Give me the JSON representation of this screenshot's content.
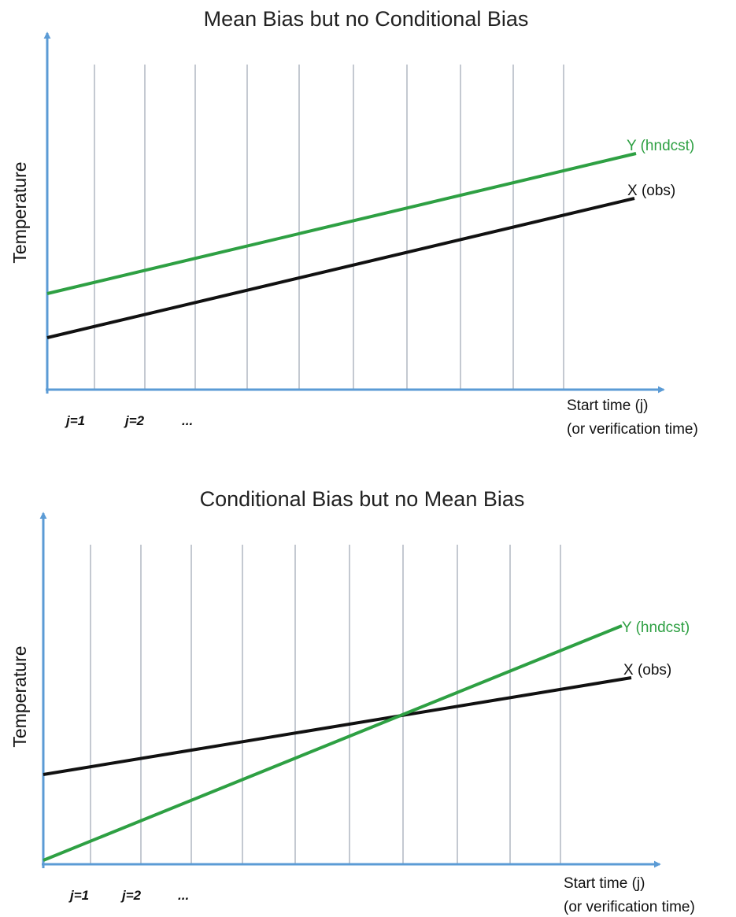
{
  "colors": {
    "axis": "#5b9bd5",
    "grid": "#c4c9d1",
    "hindcast": "#2ea043",
    "obs": "#111111"
  },
  "panels": [
    {
      "title": "Mean Bias but no Conditional Bias",
      "ylabel": "Temperature",
      "xlabel_line1": "Start time (j)",
      "xlabel_line2": "(or verification time)",
      "ticks": [
        "j=1",
        "j=2",
        "..."
      ],
      "series": [
        {
          "name": "Y (hndcst)",
          "role": "hindcast",
          "start": 0.18,
          "end": 0.84
        },
        {
          "name": "X (obs)",
          "role": "obs",
          "start": 0.0,
          "end": 0.66
        }
      ]
    },
    {
      "title": "Conditional Bias but no Mean Bias",
      "ylabel": "Temperature",
      "xlabel_line1": "Start time (j)",
      "xlabel_line2": "(or verification time)",
      "ticks": [
        "j=1",
        "j=2",
        "..."
      ],
      "series": [
        {
          "name": "Y (hndcst)",
          "role": "hindcast",
          "start": 0.0,
          "end": 0.95
        },
        {
          "name": "X (obs)",
          "role": "obs",
          "start": 0.23,
          "end": 0.72
        }
      ]
    }
  ]
}
